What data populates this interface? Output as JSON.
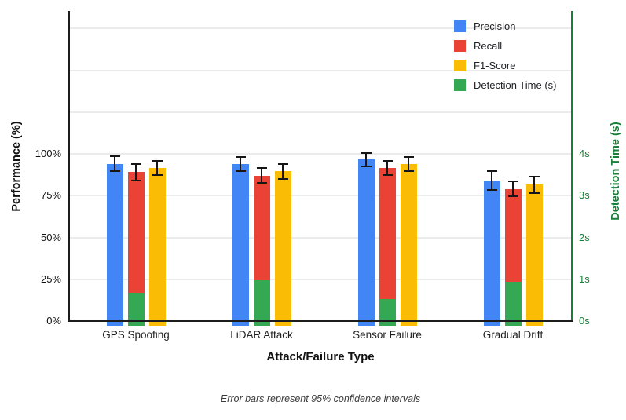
{
  "chart_data": {
    "type": "bar",
    "title": "",
    "caption": "Error bars represent 95% confidence intervals",
    "categories": [
      "GPS Spoofing",
      "LiDAR Attack",
      "Sensor Failure",
      "Gradual Drift"
    ],
    "series": [
      {
        "name": "Precision",
        "axis": "left",
        "color": "#4285F4",
        "values": [
          94.5,
          94.5,
          97.0,
          84.5
        ],
        "ci": [
          4.9,
          4.7,
          4.6,
          5.9
        ]
      },
      {
        "name": "Recall",
        "axis": "left",
        "color": "#EA4335",
        "values": [
          89.5,
          87.5,
          92.0,
          79.5
        ],
        "ci": [
          5.4,
          4.8,
          4.9,
          4.9
        ]
      },
      {
        "name": "F1-Score",
        "axis": "left",
        "color": "#FBBC05",
        "values": [
          92.0,
          90.0,
          94.5,
          82.0
        ],
        "ci": [
          4.8,
          5.0,
          4.8,
          5.5
        ]
      },
      {
        "name": "Detection Time (s)",
        "axis": "right",
        "color": "#34A853",
        "values": [
          0.7,
          1.0,
          0.55,
          0.95
        ],
        "ci": null
      }
    ],
    "left_axis": {
      "label": "Performance (%)",
      "ticks": [
        {
          "v": 0,
          "label": "0%"
        },
        {
          "v": 25,
          "label": "25%"
        },
        {
          "v": 50,
          "label": "50%"
        },
        {
          "v": 75,
          "label": "75%"
        },
        {
          "v": 100,
          "label": "100%"
        }
      ],
      "range": [
        0,
        100
      ],
      "color": "#111111"
    },
    "right_axis": {
      "label": "Detection Time (s)",
      "ticks": [
        {
          "v": 0,
          "label": "0s"
        },
        {
          "v": 1,
          "label": "1s"
        },
        {
          "v": 2,
          "label": "2s"
        },
        {
          "v": 3,
          "label": "3s"
        },
        {
          "v": 4,
          "label": "4s"
        }
      ],
      "range": [
        0,
        4
      ],
      "color": "#188038"
    },
    "x_axis": {
      "label": "Attack/Failure Type"
    },
    "legend": {
      "position": "top-right"
    },
    "grid": true,
    "layout_notes": "Detection Time bars are overlaid on the lower portion of the Recall bar slot; error bars only on the three performance series; unlabeled gridlines continue above 100%/4s"
  }
}
